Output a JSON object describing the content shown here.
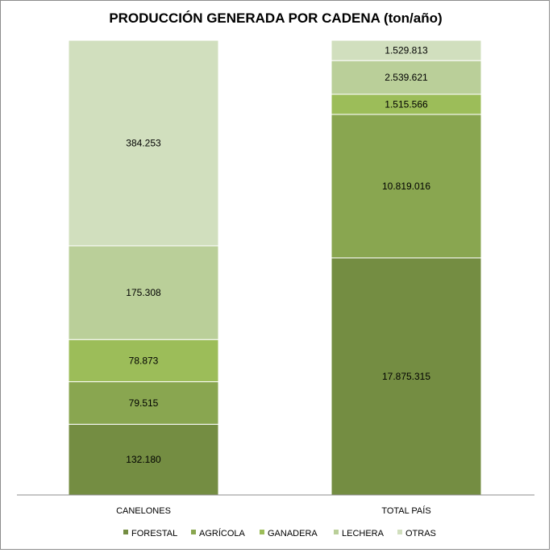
{
  "chart_data": {
    "type": "bar",
    "stacked": "percent",
    "title": "PRODUCCIÓN GENERADA POR CADENA (ton/año)",
    "categories": [
      "CANELONES",
      "TOTAL PAÍS"
    ],
    "series": [
      {
        "name": "FORESTAL",
        "color": "#748d42",
        "values": [
          132180,
          17875315
        ],
        "labels": [
          "132.180",
          "17.875.315"
        ]
      },
      {
        "name": "AGRÍCOLA",
        "color": "#89a650",
        "values": [
          79515,
          10819016
        ],
        "labels": [
          "79.515",
          "10.819.016"
        ]
      },
      {
        "name": "GANADERA",
        "color": "#9cbd59",
        "values": [
          78873,
          1515566
        ],
        "labels": [
          "78.873",
          "1.515.566"
        ]
      },
      {
        "name": "LECHERA",
        "color": "#bacf99",
        "values": [
          175308,
          2539621
        ],
        "labels": [
          "175.308",
          "2.539.621"
        ]
      },
      {
        "name": "OTRAS",
        "color": "#d1dfbe",
        "values": [
          384253,
          1529813
        ],
        "labels": [
          "384.253",
          "1.529.813"
        ]
      }
    ],
    "legend_position": "bottom",
    "grid": false
  }
}
